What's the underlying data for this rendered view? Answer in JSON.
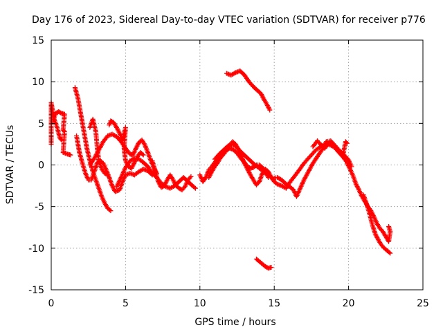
{
  "chart_data": {
    "type": "scatter",
    "title": "Day 176 of 2023, Sidereal Day-to-day VTEC variation (SDTVAR) for receiver p776",
    "xlabel": "GPS time / hours",
    "ylabel": "SDTVAR / TECUs",
    "xlim": [
      0,
      25
    ],
    "ylim": [
      -15,
      15
    ],
    "xticks": [
      0,
      5,
      10,
      15,
      20,
      25
    ],
    "yticks": [
      -15,
      -10,
      -5,
      0,
      5,
      10,
      15
    ],
    "xtick_labels": [
      "0",
      "5",
      "10",
      "15",
      "20",
      "25"
    ],
    "ytick_labels": [
      "-15",
      "-10",
      "-5",
      "0",
      "5",
      "10",
      "15"
    ],
    "grid": true,
    "marker": "+",
    "color": "#ff0000",
    "series": [
      {
        "name": "s1",
        "points": [
          [
            0.0,
            2.5
          ],
          [
            0.0,
            7.5
          ],
          [
            0.1,
            6.5
          ],
          [
            0.2,
            5.5
          ],
          [
            0.3,
            5.0
          ],
          [
            0.4,
            4.5
          ],
          [
            0.5,
            3.8
          ],
          [
            0.6,
            3.2
          ],
          [
            0.7,
            3.0
          ]
        ]
      },
      {
        "name": "s2",
        "points": [
          [
            0.1,
            5.2
          ],
          [
            0.3,
            6.2
          ],
          [
            0.5,
            6.4
          ],
          [
            0.7,
            6.2
          ],
          [
            0.9,
            6.1
          ],
          [
            0.8,
            4.2
          ],
          [
            0.9,
            4.0
          ],
          [
            0.8,
            1.5
          ],
          [
            1.1,
            1.3
          ],
          [
            1.3,
            1.2
          ]
        ]
      },
      {
        "name": "s3",
        "points": [
          [
            1.6,
            9.3
          ],
          [
            1.8,
            8.0
          ],
          [
            2.0,
            6.0
          ],
          [
            2.2,
            4.0
          ],
          [
            2.4,
            2.0
          ],
          [
            2.6,
            0.5
          ],
          [
            2.8,
            -0.8
          ],
          [
            3.0,
            -1.8
          ],
          [
            3.2,
            -2.8
          ],
          [
            3.4,
            -3.8
          ],
          [
            3.6,
            -4.6
          ],
          [
            3.8,
            -5.2
          ],
          [
            4.0,
            -5.5
          ]
        ]
      },
      {
        "name": "s4",
        "points": [
          [
            1.7,
            3.5
          ],
          [
            1.9,
            1.5
          ],
          [
            2.1,
            0.2
          ],
          [
            2.3,
            -1.0
          ],
          [
            2.5,
            -1.8
          ],
          [
            2.7,
            -1.8
          ],
          [
            2.9,
            -0.8
          ],
          [
            3.1,
            0.3
          ],
          [
            3.3,
            0.5
          ],
          [
            3.5,
            0.2
          ],
          [
            3.7,
            -0.6
          ],
          [
            3.9,
            -1.5
          ],
          [
            4.1,
            -2.5
          ],
          [
            4.3,
            -3.2
          ],
          [
            4.6,
            -3.0
          ],
          [
            4.8,
            -2.0
          ],
          [
            5.0,
            -1.2
          ],
          [
            5.3,
            -1.0
          ],
          [
            5.6,
            -1.2
          ],
          [
            5.9,
            -0.8
          ],
          [
            6.2,
            -0.5
          ],
          [
            6.5,
            -0.7
          ],
          [
            6.8,
            -1.2
          ]
        ]
      },
      {
        "name": "s5",
        "points": [
          [
            2.6,
            4.5
          ],
          [
            2.8,
            5.5
          ],
          [
            3.0,
            4.0
          ],
          [
            3.1,
            2.0
          ],
          [
            3.2,
            0.5
          ],
          [
            3.4,
            -0.5
          ],
          [
            3.6,
            -1.0
          ],
          [
            3.8,
            -1.2
          ]
        ]
      },
      {
        "name": "s6",
        "points": [
          [
            2.6,
            0.0
          ],
          [
            2.9,
            0.8
          ],
          [
            3.2,
            1.8
          ],
          [
            3.5,
            2.8
          ],
          [
            3.8,
            3.5
          ],
          [
            4.1,
            3.7
          ],
          [
            4.4,
            3.4
          ],
          [
            4.7,
            2.8
          ],
          [
            5.0,
            2.0
          ],
          [
            5.3,
            1.3
          ],
          [
            5.5,
            1.2
          ],
          [
            5.7,
            2.0
          ],
          [
            5.9,
            2.7
          ],
          [
            6.1,
            3.0
          ],
          [
            6.3,
            2.4
          ],
          [
            6.5,
            1.5
          ],
          [
            6.7,
            0.5
          ],
          [
            6.9,
            -0.3
          ],
          [
            7.1,
            -1.0
          ]
        ]
      },
      {
        "name": "s7",
        "points": [
          [
            3.9,
            4.8
          ],
          [
            4.0,
            5.3
          ],
          [
            4.2,
            5.1
          ],
          [
            4.4,
            4.5
          ],
          [
            4.6,
            3.8
          ],
          [
            4.8,
            3.0
          ],
          [
            5.0,
            4.5
          ],
          [
            4.9,
            2.0
          ],
          [
            5.0,
            0.5
          ],
          [
            5.2,
            -0.2
          ],
          [
            5.4,
            -0.4
          ],
          [
            5.6,
            0.3
          ],
          [
            5.8,
            1.0
          ],
          [
            6.0,
            1.5
          ],
          [
            6.2,
            1.2
          ]
        ]
      },
      {
        "name": "s8",
        "points": [
          [
            4.4,
            -2.6
          ],
          [
            4.7,
            -1.5
          ],
          [
            5.0,
            -0.3
          ],
          [
            5.3,
            0.5
          ],
          [
            5.6,
            0.8
          ],
          [
            5.9,
            0.7
          ],
          [
            6.2,
            0.3
          ],
          [
            6.5,
            -0.2
          ],
          [
            6.8,
            -1.0
          ],
          [
            7.1,
            -1.5
          ],
          [
            7.4,
            -2.2
          ],
          [
            7.7,
            -2.6
          ],
          [
            8.0,
            -2.8
          ],
          [
            8.3,
            -2.5
          ],
          [
            8.6,
            -2.0
          ],
          [
            8.9,
            -1.5
          ],
          [
            9.2,
            -2.0
          ],
          [
            9.5,
            -2.5
          ],
          [
            9.7,
            -2.8
          ]
        ]
      },
      {
        "name": "s9",
        "points": [
          [
            6.8,
            0.5
          ],
          [
            7.0,
            -0.8
          ],
          [
            7.2,
            -2.0
          ],
          [
            7.4,
            -2.7
          ],
          [
            7.6,
            -2.5
          ],
          [
            7.8,
            -1.8
          ],
          [
            8.0,
            -1.2
          ],
          [
            8.2,
            -1.8
          ],
          [
            8.4,
            -2.5
          ],
          [
            8.6,
            -2.8
          ],
          [
            8.8,
            -3.0
          ],
          [
            9.0,
            -2.6
          ],
          [
            9.2,
            -1.8
          ],
          [
            9.4,
            -1.4
          ]
        ]
      },
      {
        "name": "s10",
        "points": [
          [
            10.0,
            -1.2
          ],
          [
            10.2,
            -2.0
          ],
          [
            10.4,
            -1.5
          ],
          [
            10.6,
            -0.6
          ],
          [
            10.8,
            -0.2
          ],
          [
            11.0,
            0.3
          ],
          [
            11.2,
            0.8
          ],
          [
            11.4,
            1.3
          ],
          [
            11.6,
            1.6
          ],
          [
            11.8,
            1.8
          ],
          [
            12.0,
            2.0
          ],
          [
            12.2,
            1.9
          ],
          [
            12.4,
            1.6
          ],
          [
            12.6,
            1.2
          ],
          [
            12.8,
            0.7
          ],
          [
            13.0,
            0.3
          ],
          [
            13.2,
            -0.2
          ],
          [
            13.4,
            -0.4
          ],
          [
            13.6,
            -0.3
          ],
          [
            13.8,
            0.0
          ],
          [
            14.0,
            0.0
          ],
          [
            14.2,
            -0.3
          ],
          [
            14.4,
            -0.8
          ],
          [
            14.6,
            -1.5
          ]
        ]
      },
      {
        "name": "s11",
        "points": [
          [
            10.6,
            -1.5
          ],
          [
            10.8,
            -0.8
          ],
          [
            11.0,
            -0.2
          ],
          [
            11.2,
            0.3
          ],
          [
            11.4,
            0.9
          ],
          [
            11.6,
            1.3
          ],
          [
            11.8,
            1.8
          ],
          [
            12.0,
            2.4
          ],
          [
            12.2,
            2.8
          ],
          [
            12.4,
            2.5
          ],
          [
            12.6,
            1.8
          ],
          [
            12.8,
            1.0
          ],
          [
            13.0,
            0.2
          ],
          [
            13.2,
            -0.5
          ],
          [
            13.4,
            -1.2
          ],
          [
            13.6,
            -1.8
          ],
          [
            13.8,
            -2.4
          ],
          [
            14.0,
            -2.0
          ],
          [
            14.2,
            -1.0
          ],
          [
            14.4,
            -0.5
          ],
          [
            14.6,
            -0.8
          ],
          [
            14.8,
            -1.5
          ],
          [
            15.0,
            -2.0
          ],
          [
            15.2,
            -2.3
          ],
          [
            15.5,
            -2.5
          ],
          [
            15.8,
            -2.8
          ],
          [
            16.0,
            -2.2
          ],
          [
            16.3,
            -1.5
          ],
          [
            16.6,
            -0.8
          ],
          [
            17.0,
            0.2
          ],
          [
            17.4,
            1.0
          ],
          [
            17.8,
            1.8
          ],
          [
            18.2,
            2.3
          ],
          [
            18.6,
            2.5
          ],
          [
            19.0,
            2.2
          ],
          [
            19.3,
            1.6
          ],
          [
            19.6,
            1.0
          ],
          [
            19.9,
            0.3
          ]
        ]
      },
      {
        "name": "s12",
        "points": [
          [
            11.0,
            0.7
          ],
          [
            11.3,
            1.3
          ],
          [
            11.6,
            1.8
          ],
          [
            11.9,
            2.3
          ],
          [
            12.2,
            2.5
          ],
          [
            12.5,
            2.1
          ],
          [
            12.8,
            1.5
          ],
          [
            13.1,
            1.0
          ],
          [
            13.4,
            0.5
          ],
          [
            13.7,
            0.0
          ],
          [
            14.0,
            -0.4
          ],
          [
            14.3,
            -0.8
          ],
          [
            14.6,
            -1.2
          ],
          [
            14.9,
            -1.6
          ],
          [
            15.2,
            -1.5
          ],
          [
            15.5,
            -1.8
          ],
          [
            15.8,
            -2.3
          ],
          [
            16.1,
            -2.7
          ],
          [
            16.3,
            -3.0
          ],
          [
            16.5,
            -3.8
          ],
          [
            16.7,
            -3.0
          ],
          [
            17.0,
            -1.8
          ],
          [
            17.3,
            -0.8
          ],
          [
            17.6,
            0.2
          ],
          [
            17.9,
            1.0
          ],
          [
            18.2,
            1.8
          ],
          [
            18.5,
            2.8
          ],
          [
            18.8,
            2.9
          ],
          [
            19.1,
            2.3
          ],
          [
            19.4,
            1.7
          ],
          [
            19.7,
            1.2
          ],
          [
            20.0,
            0.6
          ],
          [
            20.2,
            -0.2
          ]
        ]
      },
      {
        "name": "s13",
        "points": [
          [
            11.8,
            11.0
          ],
          [
            12.1,
            10.8
          ],
          [
            12.4,
            11.1
          ],
          [
            12.7,
            11.3
          ],
          [
            13.0,
            10.8
          ],
          [
            13.3,
            10.0
          ],
          [
            13.6,
            9.4
          ],
          [
            13.9,
            8.9
          ],
          [
            14.1,
            8.6
          ],
          [
            14.3,
            7.9
          ],
          [
            14.5,
            7.3
          ],
          [
            14.7,
            6.6
          ]
        ]
      },
      {
        "name": "s14",
        "points": [
          [
            13.8,
            -11.3
          ],
          [
            14.0,
            -11.6
          ],
          [
            14.2,
            -11.9
          ],
          [
            14.4,
            -12.2
          ],
          [
            14.6,
            -12.4
          ],
          [
            14.8,
            -12.3
          ]
        ]
      },
      {
        "name": "s15",
        "points": [
          [
            17.6,
            2.2
          ],
          [
            17.9,
            2.9
          ],
          [
            18.1,
            2.5
          ],
          [
            18.4,
            2.0
          ],
          [
            18.7,
            2.7
          ],
          [
            19.0,
            2.4
          ],
          [
            19.3,
            1.8
          ],
          [
            19.6,
            1.0
          ],
          [
            19.8,
            2.8
          ],
          [
            19.9,
            2.6
          ]
        ]
      },
      {
        "name": "s16",
        "points": [
          [
            19.9,
            0.2
          ],
          [
            20.1,
            -0.5
          ],
          [
            20.3,
            -1.3
          ],
          [
            20.5,
            -2.3
          ],
          [
            20.7,
            -3.0
          ],
          [
            20.9,
            -3.8
          ],
          [
            21.1,
            -4.4
          ],
          [
            21.3,
            -5.0
          ],
          [
            21.5,
            -5.5
          ],
          [
            21.7,
            -6.2
          ],
          [
            21.9,
            -7.0
          ],
          [
            22.1,
            -7.6
          ],
          [
            22.3,
            -8.0
          ],
          [
            22.5,
            -8.6
          ],
          [
            22.7,
            -9.2
          ],
          [
            22.8,
            -8.0
          ],
          [
            22.7,
            -7.4
          ]
        ]
      },
      {
        "name": "s17",
        "points": [
          [
            21.0,
            -3.6
          ],
          [
            21.2,
            -4.6
          ],
          [
            21.4,
            -5.8
          ],
          [
            21.6,
            -7.2
          ],
          [
            21.8,
            -8.3
          ],
          [
            22.0,
            -9.0
          ],
          [
            22.2,
            -9.6
          ],
          [
            22.4,
            -10.0
          ],
          [
            22.6,
            -10.3
          ],
          [
            22.8,
            -10.6
          ]
        ]
      }
    ]
  }
}
